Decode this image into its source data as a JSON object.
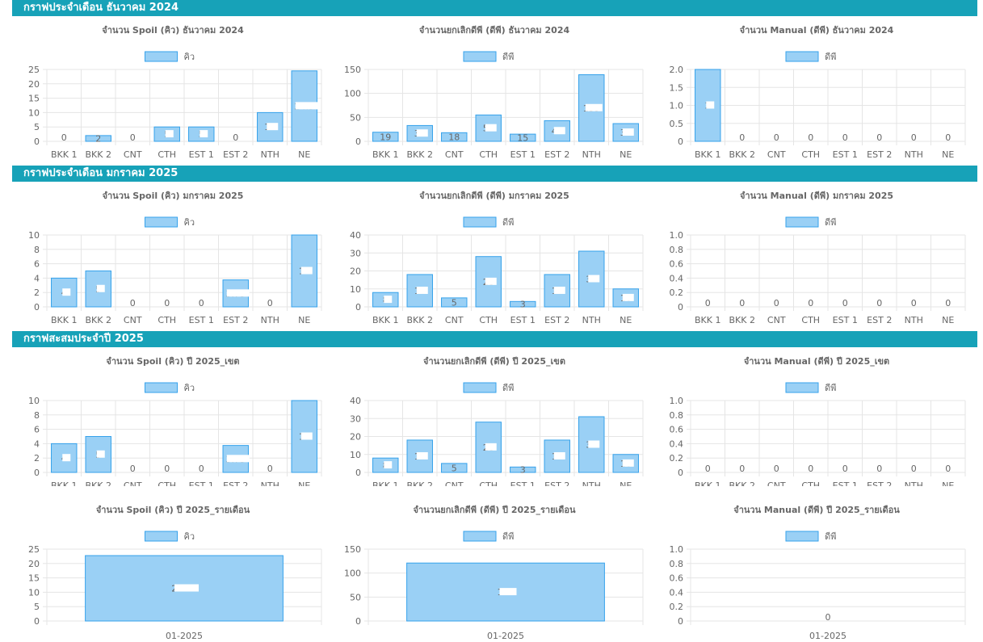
{
  "sections": [
    {
      "title": "กราฟประจำเดือน ธันวาคม 2024"
    },
    {
      "title": "กราฟประจำเดือน มกราคม 2025"
    },
    {
      "title": "กราฟสะสมประจำปี 2025"
    }
  ],
  "colors": {
    "header": "#17a2b8",
    "bar_fill": "#9ad0f5",
    "bar_stroke": "#36a2eb",
    "grid": "#e5e5e5",
    "text": "#666666",
    "label_box": "#ffffff"
  },
  "chart_data": [
    {
      "id": "dec-spoil",
      "type": "bar",
      "title": "จำนวน Spoil (คิว) ธันวาคม 2024",
      "legend": "คิว",
      "categories": [
        "BKK 1",
        "BKK 2",
        "CNT",
        "CTH",
        "EST 1",
        "EST 2",
        "NTH",
        "NE"
      ],
      "values": [
        0,
        2,
        0,
        5,
        5,
        0,
        10,
        24.5
      ],
      "labels": [
        "0",
        "2",
        "0",
        "5",
        "5",
        "0",
        "10",
        "24.5"
      ],
      "ylim": [
        0,
        25
      ],
      "yticks": [
        "0",
        "5",
        "10",
        "15",
        "20",
        "25"
      ]
    },
    {
      "id": "dec-cancel",
      "type": "bar",
      "title": "จำนวนยกเลิกดีพี (ดีพี) ธันวาคม 2024",
      "legend": "ดีพี",
      "categories": [
        "BKK 1",
        "BKK 2",
        "CNT",
        "CTH",
        "EST 1",
        "EST 2",
        "NTH",
        "NE"
      ],
      "values": [
        19,
        33,
        18,
        55,
        15,
        43,
        139,
        37
      ],
      "labels": [
        "19",
        "33",
        "18",
        "55",
        "15",
        "43",
        "139",
        "37"
      ],
      "ylim": [
        0,
        150
      ],
      "yticks": [
        "0",
        "50",
        "100",
        "150"
      ]
    },
    {
      "id": "dec-manual",
      "type": "bar",
      "title": "จำนวน Manual (ดีพี) ธันวาคม 2024",
      "legend": "ดีพี",
      "categories": [
        "BKK 1",
        "BKK 2",
        "CNT",
        "CTH",
        "EST 1",
        "EST 2",
        "NTH",
        "NE"
      ],
      "values": [
        2,
        0,
        0,
        0,
        0,
        0,
        0,
        0
      ],
      "labels": [
        "2",
        "0",
        "0",
        "0",
        "0",
        "0",
        "0",
        "0"
      ],
      "ylim": [
        0,
        2
      ],
      "yticks": [
        "0",
        "0.5",
        "1.0",
        "1.5",
        "2.0"
      ]
    },
    {
      "id": "jan-spoil",
      "type": "bar",
      "title": "จำนวน Spoil (คิว) มกราคม 2025",
      "legend": "คิว",
      "categories": [
        "BKK 1",
        "BKK 2",
        "CNT",
        "CTH",
        "EST 1",
        "EST 2",
        "NTH",
        "NE"
      ],
      "values": [
        4,
        5,
        0,
        0,
        0,
        3.75,
        0,
        10
      ],
      "labels": [
        "4",
        "5",
        "0",
        "0",
        "0",
        "3.75",
        "0",
        "10"
      ],
      "ylim": [
        0,
        10
      ],
      "yticks": [
        "0",
        "2",
        "4",
        "6",
        "8",
        "10"
      ]
    },
    {
      "id": "jan-cancel",
      "type": "bar",
      "title": "จำนวนยกเลิกดีพี (ดีพี) มกราคม 2025",
      "legend": "ดีพี",
      "categories": [
        "BKK 1",
        "BKK 2",
        "CNT",
        "CTH",
        "EST 1",
        "EST 2",
        "NTH",
        "NE"
      ],
      "values": [
        8,
        18,
        5,
        28,
        3,
        18,
        31,
        10
      ],
      "labels": [
        "8",
        "18",
        "5",
        "28",
        "3",
        "18",
        "31",
        "10"
      ],
      "ylim": [
        0,
        40
      ],
      "yticks": [
        "0",
        "10",
        "20",
        "30",
        "40"
      ]
    },
    {
      "id": "jan-manual",
      "type": "bar",
      "title": "จำนวน Manual (ดีพี) มกราคม 2025",
      "legend": "ดีพี",
      "categories": [
        "BKK 1",
        "BKK 2",
        "CNT",
        "CTH",
        "EST 1",
        "EST 2",
        "NTH",
        "NE"
      ],
      "values": [
        0,
        0,
        0,
        0,
        0,
        0,
        0,
        0
      ],
      "labels": [
        "0",
        "0",
        "0",
        "0",
        "0",
        "0",
        "0",
        "0"
      ],
      "ylim": [
        0,
        1
      ],
      "yticks": [
        "0",
        "0.2",
        "0.4",
        "0.6",
        "0.8",
        "1.0"
      ]
    },
    {
      "id": "yr-spoil-zone",
      "type": "bar",
      "title": "จำนวน Spoil (คิว) ปี 2025_เขต",
      "legend": "คิว",
      "categories": [
        "BKK 1",
        "BKK 2",
        "CNT",
        "CTH",
        "EST 1",
        "EST 2",
        "NTH",
        "NE"
      ],
      "values": [
        4,
        5,
        0,
        0,
        0,
        3.75,
        0,
        10
      ],
      "labels": [
        "4",
        "5",
        "0",
        "0",
        "0",
        "3.75",
        "0",
        "10"
      ],
      "ylim": [
        0,
        10
      ],
      "yticks": [
        "0",
        "2",
        "4",
        "6",
        "8",
        "10"
      ]
    },
    {
      "id": "yr-cancel-zone",
      "type": "bar",
      "title": "จำนวนยกเลิกดีพี (ดีพี) ปี 2025_เขต",
      "legend": "ดีพี",
      "categories": [
        "BKK 1",
        "BKK 2",
        "CNT",
        "CTH",
        "EST 1",
        "EST 2",
        "NTH",
        "NE"
      ],
      "values": [
        8,
        18,
        5,
        28,
        3,
        18,
        31,
        10
      ],
      "labels": [
        "8",
        "18",
        "5",
        "28",
        "3",
        "18",
        "31",
        "10"
      ],
      "ylim": [
        0,
        40
      ],
      "yticks": [
        "0",
        "10",
        "20",
        "30",
        "40"
      ]
    },
    {
      "id": "yr-manual-zone",
      "type": "bar",
      "title": "จำนวน Manual (ดีพี) ปี 2025_เขต",
      "legend": "ดีพี",
      "categories": [
        "BKK 1",
        "BKK 2",
        "CNT",
        "CTH",
        "EST 1",
        "EST 2",
        "NTH",
        "NE"
      ],
      "values": [
        0,
        0,
        0,
        0,
        0,
        0,
        0,
        0
      ],
      "labels": [
        "0",
        "0",
        "0",
        "0",
        "0",
        "0",
        "0",
        "0"
      ],
      "ylim": [
        0,
        1
      ],
      "yticks": [
        "0",
        "0.2",
        "0.4",
        "0.6",
        "0.8",
        "1.0"
      ]
    },
    {
      "id": "yr-spoil-month",
      "type": "bar",
      "title": "จำนวน Spoil (คิว) ปี 2025_รายเดือน",
      "legend": "คิว",
      "categories": [
        "01-2025"
      ],
      "values": [
        22.75
      ],
      "labels": [
        "22.75"
      ],
      "ylim": [
        0,
        25
      ],
      "yticks": [
        "0",
        "5",
        "10",
        "15",
        "20",
        "25"
      ]
    },
    {
      "id": "yr-cancel-month",
      "type": "bar",
      "title": "จำนวนยกเลิกดีพี (ดีพี) ปี 2025_รายเดือน",
      "legend": "ดีพี",
      "categories": [
        "01-2025"
      ],
      "values": [
        121
      ],
      "labels": [
        "121"
      ],
      "ylim": [
        0,
        150
      ],
      "yticks": [
        "0",
        "50",
        "100",
        "150"
      ]
    },
    {
      "id": "yr-manual-month",
      "type": "bar",
      "title": "จำนวน Manual (ดีพี) ปี 2025_รายเดือน",
      "legend": "ดีพี",
      "categories": [
        "01-2025"
      ],
      "values": [
        0
      ],
      "labels": [
        "0"
      ],
      "ylim": [
        0,
        1
      ],
      "yticks": [
        "0",
        "0.2",
        "0.4",
        "0.6",
        "0.8",
        "1.0"
      ]
    }
  ]
}
